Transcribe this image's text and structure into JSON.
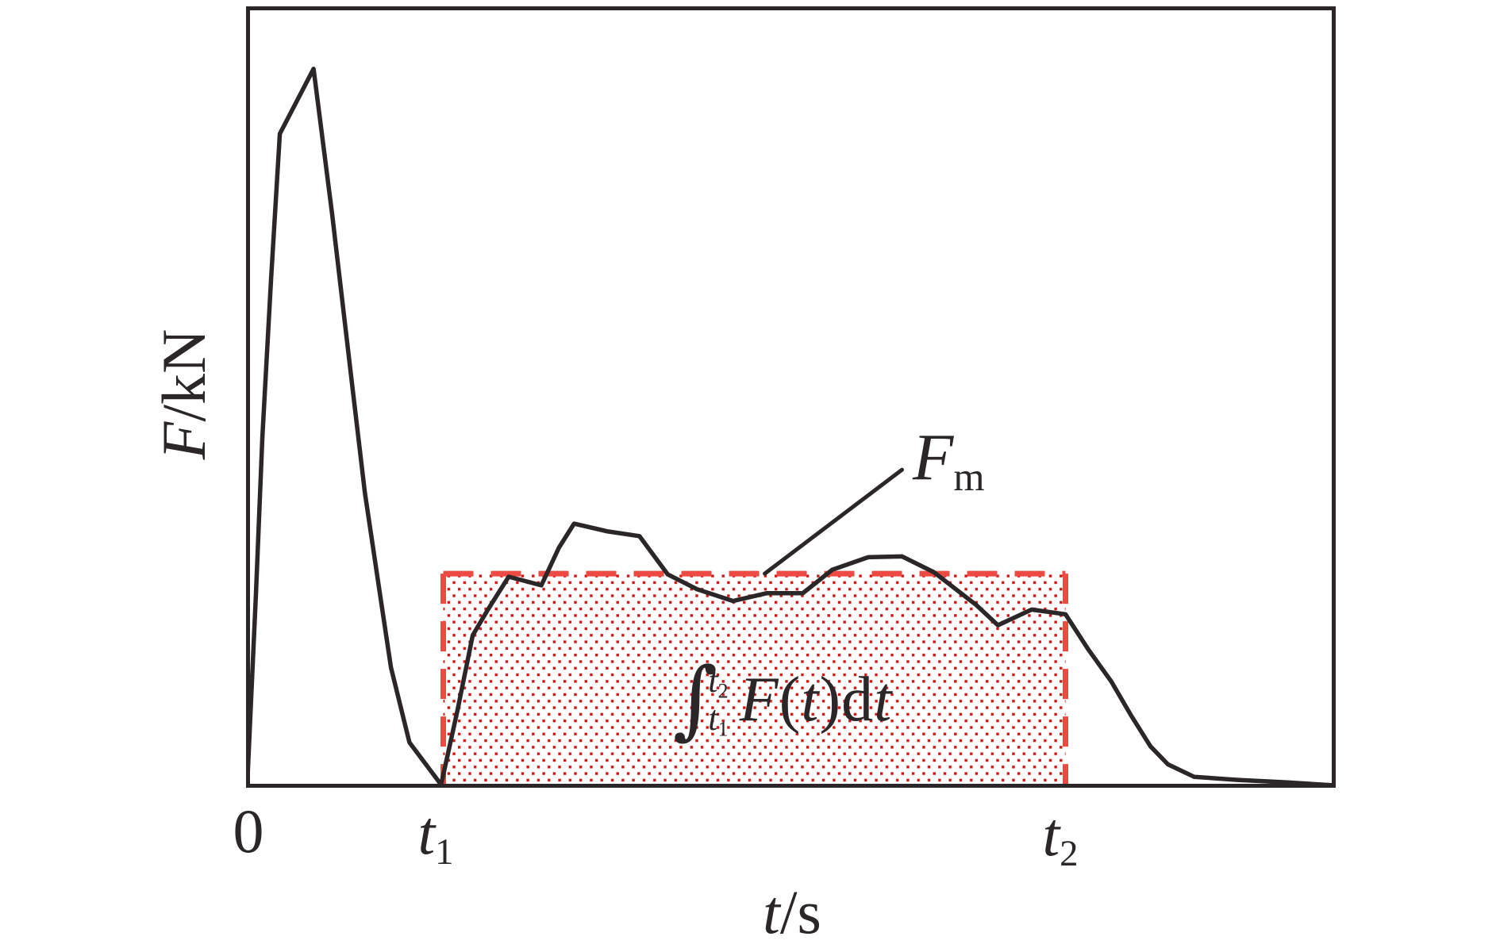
{
  "figure": {
    "background": "#ffffff",
    "frame_color": "#2b2728",
    "curve_color": "#2b2728",
    "dash_color": "#ee4a44",
    "dot_color": "#cf1616",
    "annotation_color": "#2b2728"
  },
  "axes": {
    "y_label": {
      "variable": "F",
      "separator": "/",
      "unit": "kN"
    },
    "x_label": {
      "variable": "t",
      "separator": "/",
      "unit": "s"
    },
    "ticks": {
      "origin": "0",
      "t1": {
        "base": "t",
        "sub": "1"
      },
      "t2": {
        "base": "t",
        "sub": "2"
      }
    }
  },
  "annotations": {
    "mean_force": {
      "base": "F",
      "sub": "m"
    },
    "integral": {
      "sign": "∫",
      "upper": {
        "base": "t",
        "sub": "2"
      },
      "lower": {
        "base": "t",
        "sub": "1"
      },
      "func": "F",
      "open_paren": "(",
      "variable": "t",
      "close_paren": ")",
      "differential": "d",
      "diff_variable": "t"
    }
  },
  "chart_data": {
    "type": "line",
    "title": "",
    "xlabel": "t/s",
    "ylabel": "F/kN",
    "x_ticks": [
      "0",
      "t1",
      "t2"
    ],
    "numeric_axes": false,
    "grid": false,
    "legend_position": "none",
    "t1_frac": 0.181,
    "t2_frac": 0.752,
    "fm_frac": 0.274,
    "shaded_region": {
      "x_from": "t1",
      "x_to": "t2",
      "y_from": 0,
      "y_to": "Fm",
      "style": "red dotted hatch, red dashed border"
    },
    "series": [
      {
        "name": "F(t)",
        "points": [
          [
            0.001,
            0.001
          ],
          [
            0.004,
            0.093
          ],
          [
            0.009,
            0.246
          ],
          [
            0.015,
            0.449
          ],
          [
            0.023,
            0.652
          ],
          [
            0.031,
            0.837
          ],
          [
            0.062,
            0.92
          ],
          [
            0.079,
            0.734
          ],
          [
            0.097,
            0.52
          ],
          [
            0.109,
            0.378
          ],
          [
            0.121,
            0.266
          ],
          [
            0.133,
            0.154
          ],
          [
            0.15,
            0.058
          ],
          [
            0.179,
            0.004
          ],
          [
            0.194,
            0.099
          ],
          [
            0.208,
            0.195
          ],
          [
            0.222,
            0.228
          ],
          [
            0.241,
            0.27
          ],
          [
            0.255,
            0.265
          ],
          [
            0.271,
            0.259
          ],
          [
            0.287,
            0.307
          ],
          [
            0.301,
            0.338
          ],
          [
            0.332,
            0.328
          ],
          [
            0.361,
            0.322
          ],
          [
            0.387,
            0.273
          ],
          [
            0.414,
            0.254
          ],
          [
            0.447,
            0.239
          ],
          [
            0.478,
            0.249
          ],
          [
            0.511,
            0.249
          ],
          [
            0.538,
            0.279
          ],
          [
            0.571,
            0.295
          ],
          [
            0.602,
            0.296
          ],
          [
            0.631,
            0.276
          ],
          [
            0.67,
            0.234
          ],
          [
            0.69,
            0.208
          ],
          [
            0.721,
            0.228
          ],
          [
            0.752,
            0.222
          ],
          [
            0.773,
            0.177
          ],
          [
            0.794,
            0.136
          ],
          [
            0.812,
            0.093
          ],
          [
            0.83,
            0.053
          ],
          [
            0.846,
            0.03
          ],
          [
            0.87,
            0.014
          ],
          [
            0.91,
            0.01
          ],
          [
            0.954,
            0.007
          ],
          [
            0.999,
            0.003
          ]
        ]
      }
    ],
    "pointer_line": [
      [
        0.476,
        0.274
      ],
      [
        0.602,
        0.407
      ]
    ]
  }
}
